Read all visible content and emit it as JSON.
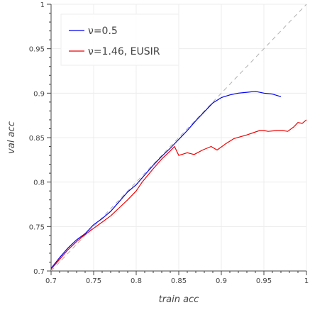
{
  "chart_data": {
    "type": "line",
    "xlabel": "train acc",
    "ylabel": "val acc",
    "xlim": [
      0.7,
      1.0
    ],
    "ylim": [
      0.7,
      1.0
    ],
    "xticks": [
      "0.7",
      "0.75",
      "0.8",
      "0.85",
      "0.9",
      "0.95",
      "1"
    ],
    "yticks": [
      "0.7",
      "0.75",
      "0.8",
      "0.85",
      "0.9",
      "0.95",
      "1"
    ],
    "grid": true,
    "legend_position": "top-left",
    "reference_line": {
      "style": "dashed",
      "color": "#b0b0b0",
      "points": [
        [
          0.7,
          0.7
        ],
        [
          1.0,
          1.0
        ]
      ]
    },
    "series": [
      {
        "name": "ν=0.5",
        "color": "#0000ee",
        "points": [
          [
            0.7,
            0.703
          ],
          [
            0.71,
            0.715
          ],
          [
            0.72,
            0.726
          ],
          [
            0.73,
            0.735
          ],
          [
            0.74,
            0.742
          ],
          [
            0.75,
            0.752
          ],
          [
            0.76,
            0.759
          ],
          [
            0.77,
            0.767
          ],
          [
            0.78,
            0.778
          ],
          [
            0.79,
            0.789
          ],
          [
            0.8,
            0.797
          ],
          [
            0.81,
            0.808
          ],
          [
            0.82,
            0.819
          ],
          [
            0.83,
            0.829
          ],
          [
            0.84,
            0.838
          ],
          [
            0.85,
            0.848
          ],
          [
            0.86,
            0.858
          ],
          [
            0.87,
            0.869
          ],
          [
            0.88,
            0.879
          ],
          [
            0.89,
            0.889
          ],
          [
            0.9,
            0.895
          ],
          [
            0.91,
            0.898
          ],
          [
            0.92,
            0.9
          ],
          [
            0.93,
            0.901
          ],
          [
            0.94,
            0.902
          ],
          [
            0.95,
            0.9
          ],
          [
            0.96,
            0.899
          ],
          [
            0.97,
            0.896
          ]
        ]
      },
      {
        "name": "ν=1.46, EUSIR",
        "color": "#ee0000",
        "points": [
          [
            0.7,
            0.702
          ],
          [
            0.71,
            0.713
          ],
          [
            0.72,
            0.724
          ],
          [
            0.73,
            0.733
          ],
          [
            0.74,
            0.741
          ],
          [
            0.75,
            0.748
          ],
          [
            0.76,
            0.755
          ],
          [
            0.77,
            0.762
          ],
          [
            0.78,
            0.771
          ],
          [
            0.79,
            0.78
          ],
          [
            0.8,
            0.79
          ],
          [
            0.807,
            0.8
          ],
          [
            0.82,
            0.815
          ],
          [
            0.83,
            0.826
          ],
          [
            0.84,
            0.835
          ],
          [
            0.845,
            0.84
          ],
          [
            0.85,
            0.83
          ],
          [
            0.86,
            0.833
          ],
          [
            0.868,
            0.831
          ],
          [
            0.878,
            0.836
          ],
          [
            0.888,
            0.84
          ],
          [
            0.895,
            0.836
          ],
          [
            0.905,
            0.843
          ],
          [
            0.915,
            0.849
          ],
          [
            0.93,
            0.853
          ],
          [
            0.945,
            0.858
          ],
          [
            0.95,
            0.858
          ],
          [
            0.955,
            0.857
          ],
          [
            0.965,
            0.858
          ],
          [
            0.972,
            0.858
          ],
          [
            0.978,
            0.857
          ],
          [
            0.985,
            0.862
          ],
          [
            0.99,
            0.867
          ],
          [
            0.995,
            0.866
          ],
          [
            1.0,
            0.87
          ]
        ]
      }
    ]
  }
}
